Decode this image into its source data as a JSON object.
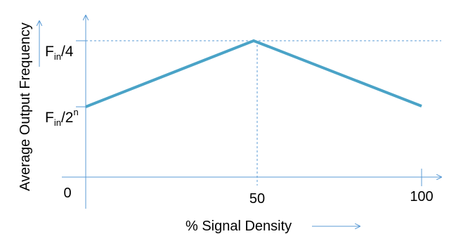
{
  "chart_data": {
    "type": "line",
    "title": "",
    "xlabel": "% Signal Density",
    "ylabel": "Average Output Frequency",
    "x_ticks": [
      "0",
      "50",
      "100"
    ],
    "y_ticks": [
      {
        "main": "F",
        "sub": "in",
        "rest": "/2",
        "sup": "n"
      },
      {
        "main": "F",
        "sub": "in",
        "rest": "/4",
        "sup": ""
      }
    ],
    "xlim": [
      0,
      100
    ],
    "ylim_note": "qualitative axis",
    "series": [
      {
        "x": [
          0,
          50,
          100
        ],
        "y": [
          "Fin/2^n",
          "Fin/4",
          "below Fin/4 midpoint"
        ]
      }
    ],
    "line_color": "#4aa3c7",
    "axis_color": "#5b9bd5",
    "grid": false,
    "legend": "none"
  }
}
